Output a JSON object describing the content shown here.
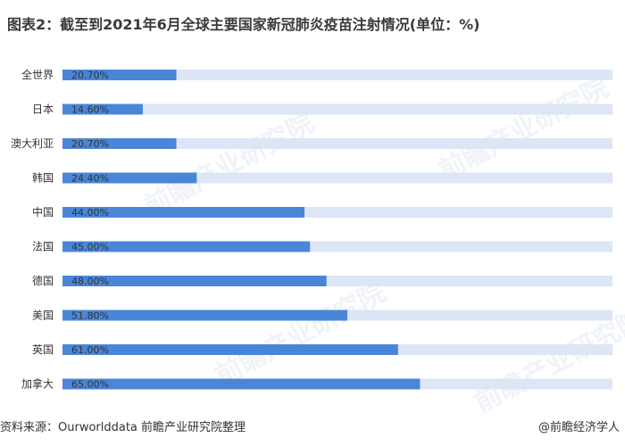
{
  "title": "图表2：截至到2021年6月全球主要国家新冠肺炎疫苗注射情况(单位：%)",
  "footer": {
    "source": "资料来源：Ourworlddata 前瞻产业研究院整理",
    "brand": "@前瞻经济学人"
  },
  "watermark": "前瞻产业研究院",
  "colors": {
    "bar": "#4a86d8",
    "track": "#dce6f5",
    "label": "#333333"
  },
  "chart_data": {
    "type": "bar",
    "orientation": "horizontal",
    "categories": [
      "全世界",
      "日本",
      "澳大利亚",
      "韩国",
      "中国",
      "法国",
      "德国",
      "美国",
      "英国",
      "加拿大"
    ],
    "values": [
      20.7,
      14.6,
      20.7,
      24.4,
      44.0,
      45.0,
      48.0,
      51.8,
      61.0,
      65.0
    ],
    "data_labels": [
      "20.70%",
      "14.60%",
      "20.70%",
      "24.40%",
      "44.00%",
      "45.00%",
      "48.00%",
      "51.80%",
      "61.00%",
      "65.00%"
    ],
    "xlim": [
      0,
      100
    ],
    "unit": "%",
    "grid": false
  }
}
